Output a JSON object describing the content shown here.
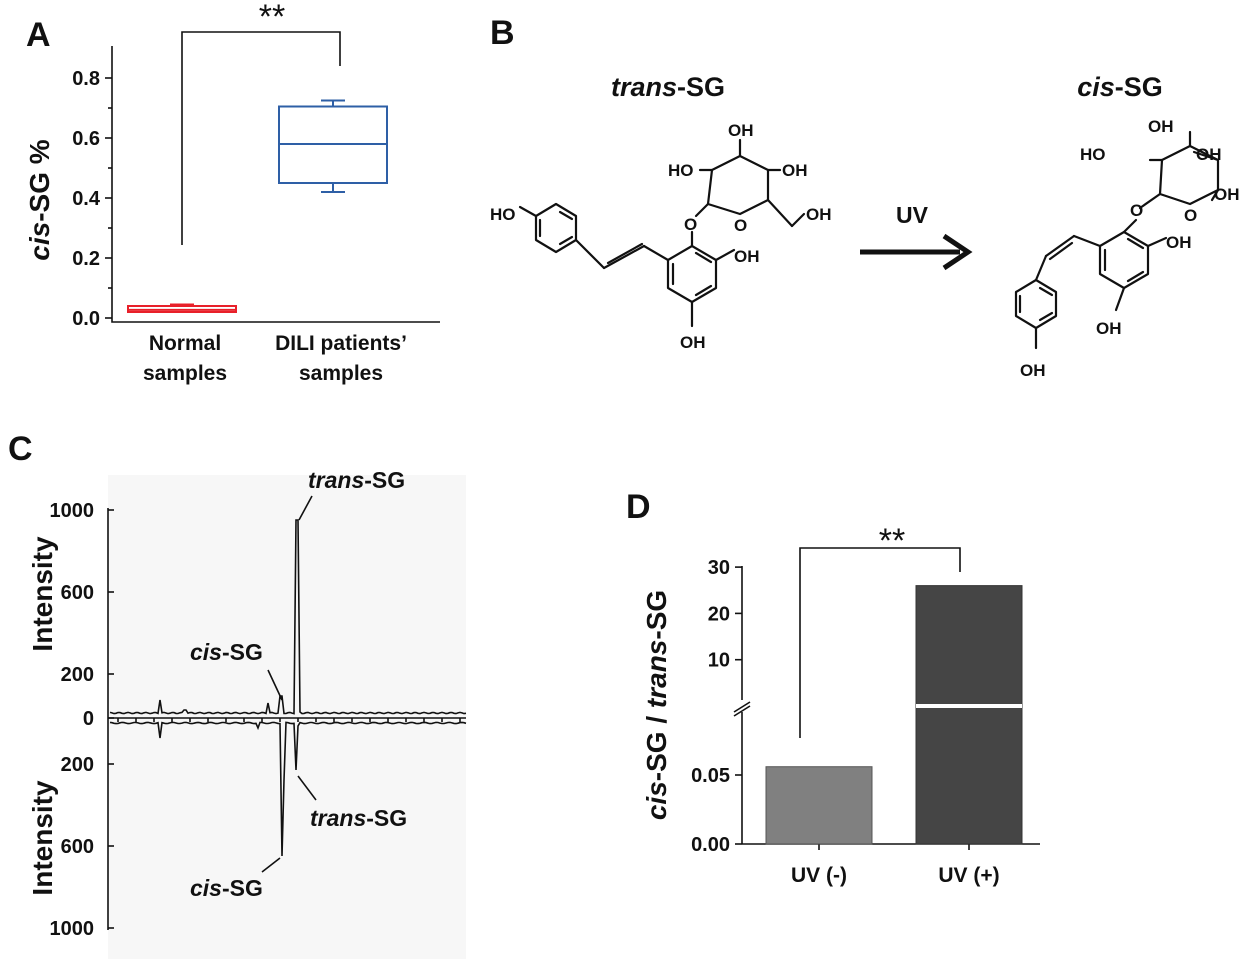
{
  "panels": {
    "a": "A",
    "b": "B",
    "c": "C",
    "d": "D"
  },
  "chart_data": [
    {
      "id": "A",
      "type": "box",
      "ylabel_italic": "cis",
      "ylabel_rest": "-SG %",
      "ylim": [
        0,
        0.85
      ],
      "yticks": [
        "0.0",
        "0.2",
        "0.4",
        "0.6",
        "0.8"
      ],
      "categories": [
        [
          "Normal",
          "samples"
        ],
        [
          "DILI patients’",
          "samples"
        ]
      ],
      "boxes": [
        {
          "whisker_low": 0.02,
          "q1": 0.02,
          "median": 0.027,
          "q3": 0.04,
          "whisker_high": 0.045,
          "color": "#e8202a"
        },
        {
          "whisker_low": 0.42,
          "q1": 0.45,
          "median": 0.58,
          "q3": 0.705,
          "whisker_high": 0.725,
          "color": "#2e5fa6"
        }
      ],
      "significance": "**"
    },
    {
      "id": "C",
      "type": "line",
      "ylabel": "Intensity",
      "top_yticks": [
        "0",
        "200",
        "600",
        "1000"
      ],
      "bottom_yticks": [
        "200",
        "600",
        "1000"
      ],
      "annotations": {
        "top_trans": {
          "italic": "trans",
          "rest": "-SG"
        },
        "top_cis": {
          "italic": "cis",
          "rest": "-SG"
        },
        "bottom_trans": {
          "italic": "trans",
          "rest": "-SG"
        },
        "bottom_cis": {
          "italic": "cis",
          "rest": "-SG"
        }
      }
    },
    {
      "id": "D",
      "type": "bar",
      "ylabel_parts": [
        {
          "text": "cis",
          "italic": true
        },
        {
          "text": "-SG / ",
          "italic": false
        },
        {
          "text": "trans",
          "italic": true
        },
        {
          "text": "-SG",
          "italic": false
        }
      ],
      "categories": [
        "UV (-)",
        "UV (+)"
      ],
      "values": [
        0.056,
        26
      ],
      "colors": [
        "#808080",
        "#454545"
      ],
      "broken_axis": true,
      "lower_yticks": [
        "0.00",
        "0.05"
      ],
      "upper_yticks": [
        "10",
        "20",
        "30"
      ],
      "significance": "**"
    }
  ],
  "panel_b": {
    "left_title": {
      "italic": "trans",
      "rest": "-SG"
    },
    "right_title": {
      "italic": "cis",
      "rest": "-SG"
    },
    "arrow_label": "UV",
    "oh": "OH",
    "ho": "HO"
  }
}
